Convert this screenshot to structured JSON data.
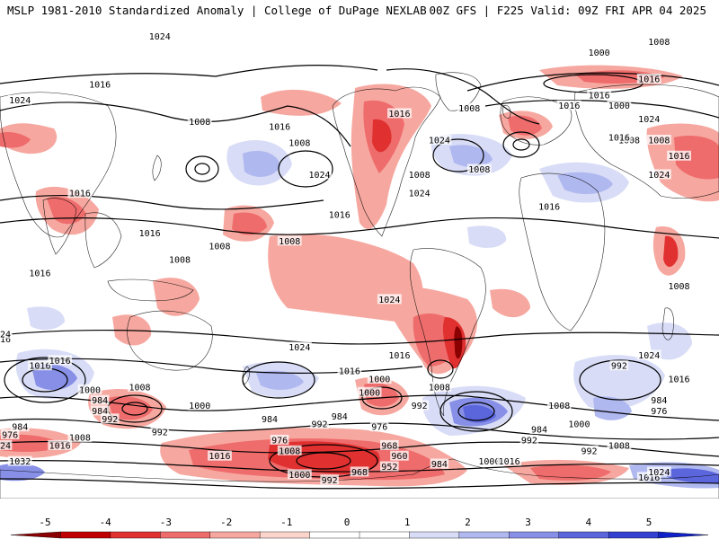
{
  "header": {
    "title_left": "MSLP 1981-2010 Standardized Anomaly | College of DuPage NEXLAB",
    "title_right": "00Z GFS | F225 Valid: 09Z FRI APR 04 2025"
  },
  "isobar_labels": [
    {
      "text": "1024",
      "lon": -140,
      "lat": 60
    },
    {
      "text": "1024",
      "lon": -70,
      "lat": 84
    },
    {
      "text": "1016",
      "lon": -100,
      "lat": 66
    },
    {
      "text": "1008",
      "lon": -50,
      "lat": 52
    },
    {
      "text": "1016",
      "lon": -10,
      "lat": 50
    },
    {
      "text": "1008",
      "lon": 0,
      "lat": 44
    },
    {
      "text": "1024",
      "lon": 10,
      "lat": 32
    },
    {
      "text": "1016",
      "lon": 20,
      "lat": 17
    },
    {
      "text": "1008",
      "lon": -5,
      "lat": 7
    },
    {
      "text": "1008",
      "lon": 60,
      "lat": 32
    },
    {
      "text": "1008",
      "lon": 90,
      "lat": 34
    },
    {
      "text": "1024",
      "lon": 70,
      "lat": 45
    },
    {
      "text": "1016",
      "lon": 125,
      "lat": 20
    },
    {
      "text": "1008",
      "lon": -60,
      "lat": 0
    },
    {
      "text": "1008",
      "lon": -40,
      "lat": 5
    },
    {
      "text": "1016",
      "lon": -75,
      "lat": 10
    },
    {
      "text": "1016",
      "lon": -130,
      "lat": -5
    },
    {
      "text": "1016",
      "lon": 50,
      "lat": 55
    },
    {
      "text": "1008",
      "lon": 85,
      "lat": 57
    },
    {
      "text": "1016",
      "lon": 135,
      "lat": 58
    },
    {
      "text": "1016",
      "lon": 150,
      "lat": 62
    },
    {
      "text": "1008",
      "lon": 180,
      "lat": 82
    },
    {
      "text": "1000",
      "lon": 150,
      "lat": 78
    },
    {
      "text": "1016",
      "lon": 175,
      "lat": 68
    },
    {
      "text": "1024",
      "lon": 175,
      "lat": 53
    },
    {
      "text": "1000",
      "lon": 160,
      "lat": 58
    },
    {
      "text": "1008",
      "lon": 165,
      "lat": 45
    },
    {
      "text": "1016",
      "lon": 160,
      "lat": 46
    },
    {
      "text": "1024",
      "lon": 60,
      "lat": 25
    },
    {
      "text": "1016",
      "lon": 190,
      "lat": 39
    },
    {
      "text": "1024",
      "lon": 180,
      "lat": 32
    },
    {
      "text": "1008",
      "lon": 180,
      "lat": 45
    },
    {
      "text": "1016",
      "lon": 250,
      "lat": 25
    },
    {
      "text": "1008",
      "lon": 190,
      "lat": -10
    },
    {
      "text": "1016",
      "lon": 210,
      "lat": -30
    },
    {
      "text": "1024",
      "lon": 175,
      "lat": -36
    },
    {
      "text": "1016",
      "lon": 190,
      "lat": -45
    },
    {
      "text": "1024",
      "lon": 45,
      "lat": -15
    },
    {
      "text": "1016",
      "lon": 50,
      "lat": -36
    },
    {
      "text": "1024",
      "lon": 0,
      "lat": -33
    },
    {
      "text": "1016",
      "lon": -130,
      "lat": -40
    },
    {
      "text": "1016",
      "lon": 25,
      "lat": -42
    },
    {
      "text": "1024",
      "lon": -150,
      "lat": -28
    },
    {
      "text": "1016",
      "lon": -170,
      "lat": -45
    },
    {
      "text": "1016",
      "lon": -120,
      "lat": -38
    },
    {
      "text": "1000",
      "lon": -105,
      "lat": -49
    },
    {
      "text": "984",
      "lon": -100,
      "lat": -53
    },
    {
      "text": "1008",
      "lon": -80,
      "lat": -48
    },
    {
      "text": "984",
      "lon": -100,
      "lat": -57
    },
    {
      "text": "992",
      "lon": -95,
      "lat": -60
    },
    {
      "text": "1008",
      "lon": 70,
      "lat": -48
    },
    {
      "text": "1000",
      "lon": 35,
      "lat": -50
    },
    {
      "text": "1000",
      "lon": 40,
      "lat": -45
    },
    {
      "text": "992",
      "lon": 60,
      "lat": -55
    },
    {
      "text": "992",
      "lon": 10,
      "lat": -62
    },
    {
      "text": "984",
      "lon": 20,
      "lat": -59
    },
    {
      "text": "976",
      "lon": 40,
      "lat": -63
    },
    {
      "text": "968",
      "lon": 45,
      "lat": -70
    },
    {
      "text": "960",
      "lon": 50,
      "lat": -74
    },
    {
      "text": "952",
      "lon": 45,
      "lat": -78
    },
    {
      "text": "968",
      "lon": 30,
      "lat": -80
    },
    {
      "text": "992",
      "lon": 15,
      "lat": -83
    },
    {
      "text": "984",
      "lon": 70,
      "lat": -77
    },
    {
      "text": "992",
      "lon": 115,
      "lat": -68
    },
    {
      "text": "984",
      "lon": 120,
      "lat": -64
    },
    {
      "text": "976",
      "lon": -10,
      "lat": -68
    },
    {
      "text": "1000",
      "lon": 0,
      "lat": -81
    },
    {
      "text": "1008",
      "lon": -5,
      "lat": -72
    },
    {
      "text": "1008",
      "lon": -110,
      "lat": -67
    },
    {
      "text": "1016",
      "lon": -40,
      "lat": -74
    },
    {
      "text": "984",
      "lon": -15,
      "lat": -60
    },
    {
      "text": "1000",
      "lon": -50,
      "lat": -55
    },
    {
      "text": "992",
      "lon": -70,
      "lat": -65
    },
    {
      "text": "984",
      "lon": -140,
      "lat": -63
    },
    {
      "text": "976",
      "lon": -145,
      "lat": -66
    },
    {
      "text": "1024",
      "lon": -150,
      "lat": -70
    },
    {
      "text": "1016",
      "lon": -120,
      "lat": -70
    },
    {
      "text": "1032",
      "lon": -140,
      "lat": -76
    },
    {
      "text": "1008",
      "lon": 130,
      "lat": -55
    },
    {
      "text": "1000",
      "lon": 140,
      "lat": -62
    },
    {
      "text": "992",
      "lon": 145,
      "lat": -72
    },
    {
      "text": "1008",
      "lon": 160,
      "lat": -70
    },
    {
      "text": "1016",
      "lon": 175,
      "lat": -82
    },
    {
      "text": "1024",
      "lon": 180,
      "lat": -80
    },
    {
      "text": "1000",
      "lon": 95,
      "lat": -76
    },
    {
      "text": "1016",
      "lon": 105,
      "lat": -76
    },
    {
      "text": "976",
      "lon": 180,
      "lat": -57
    },
    {
      "text": "984",
      "lon": 180,
      "lat": -53
    },
    {
      "text": "992",
      "lon": 160,
      "lat": -40
    }
  ],
  "colorbar": {
    "ticks": [
      "-5",
      "-4",
      "-3",
      "-2",
      "-1",
      "0",
      "1",
      "2",
      "3",
      "4",
      "5"
    ],
    "colors": [
      "#8b0000",
      "#c00000",
      "#e03030",
      "#ef6c6c",
      "#f6a8a0",
      "#fbd4cc",
      "#ffffff",
      "#ffffff",
      "#d8dcf6",
      "#b0b8f0",
      "#8790e6",
      "#5c66dc",
      "#3340d2",
      "#1020c8"
    ]
  }
}
